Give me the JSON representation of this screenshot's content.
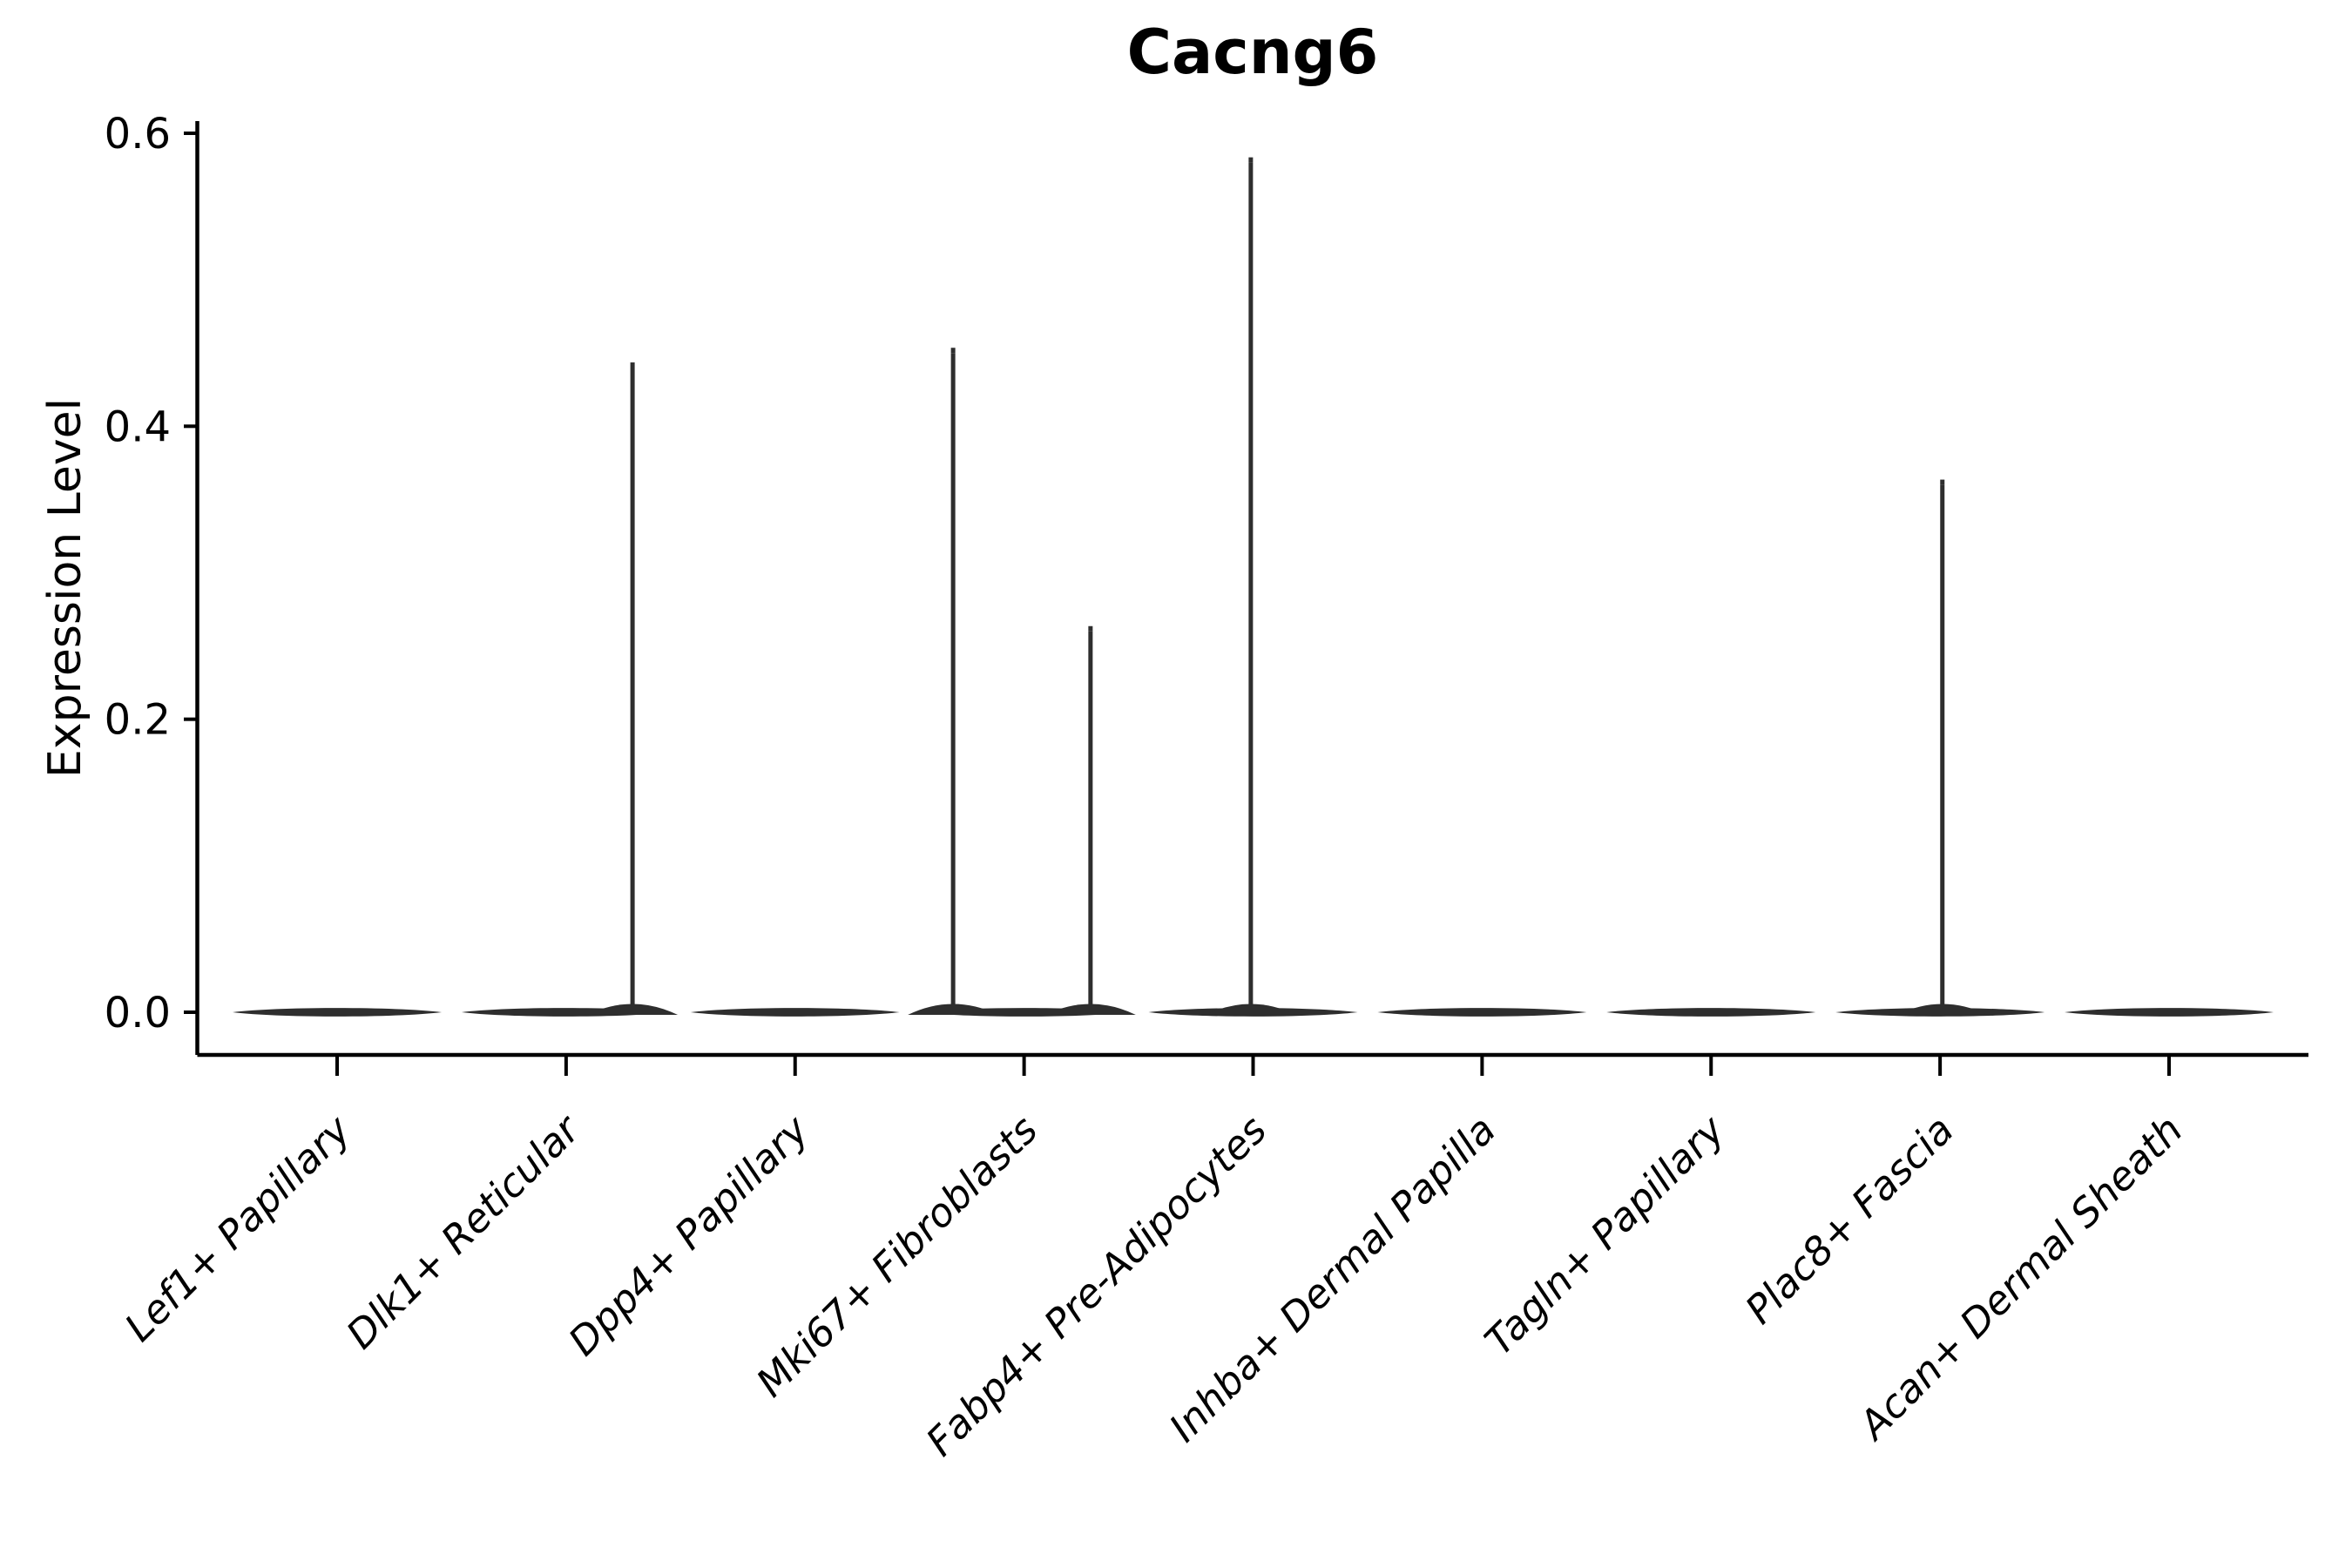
{
  "chart_data": {
    "type": "violin",
    "title": "Cacng6",
    "xlabel": "",
    "ylabel": "Expression Level",
    "ylim": [
      0,
      0.61
    ],
    "grid": false,
    "legend": null,
    "yticks": [
      {
        "value": 0.0,
        "label": "0.0"
      },
      {
        "value": 0.2,
        "label": "0.2"
      },
      {
        "value": 0.4,
        "label": "0.4"
      },
      {
        "value": 0.6,
        "label": "0.6"
      }
    ],
    "categories": [
      "Lef1+ Papillary",
      "Dlk1+ Reticular",
      "Dpp4+ Papillary",
      "Mki67+ Fibroblasts",
      "Fabp4+ Pre-Adipocytes",
      "Inhba+ Dermal Papilla",
      "Tagln+ Papillary",
      "Plac8+ Fascia",
      "Acan+ Dermal Sheath"
    ],
    "series": [
      {
        "category": "Lef1+ Papillary",
        "violin_base_value": 0.0,
        "spikes": []
      },
      {
        "category": "Dlk1+ Reticular",
        "violin_base_value": 0.0,
        "spikes": [
          {
            "value": 0.44,
            "x_offset_frac": 0.29
          }
        ]
      },
      {
        "category": "Dpp4+ Papillary",
        "violin_base_value": 0.0,
        "spikes": []
      },
      {
        "category": "Mki67+ Fibroblasts",
        "violin_base_value": 0.0,
        "spikes": [
          {
            "value": 0.45,
            "x_offset_frac": -0.31
          },
          {
            "value": 0.26,
            "x_offset_frac": 0.29
          }
        ]
      },
      {
        "category": "Fabp4+ Pre-Adipocytes",
        "violin_base_value": 0.0,
        "spikes": [
          {
            "value": 0.58,
            "x_offset_frac": -0.01
          }
        ]
      },
      {
        "category": "Inhba+ Dermal Papilla",
        "violin_base_value": 0.0,
        "spikes": []
      },
      {
        "category": "Tagln+ Papillary",
        "violin_base_value": 0.0,
        "spikes": []
      },
      {
        "category": "Plac8+ Fascia",
        "violin_base_value": 0.0,
        "spikes": [
          {
            "value": 0.36,
            "x_offset_frac": 0.01
          }
        ]
      },
      {
        "category": "Acan+ Dermal Sheath",
        "violin_base_value": 0.0,
        "spikes": []
      }
    ],
    "colors": {
      "violin_stroke": "#2e2e2e",
      "axis": "#000000",
      "background": "#ffffff"
    }
  }
}
